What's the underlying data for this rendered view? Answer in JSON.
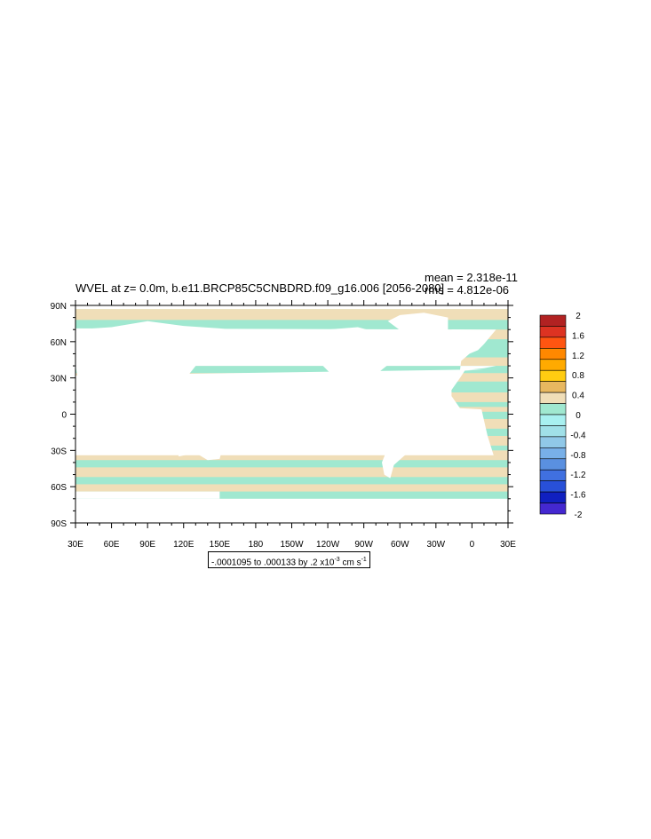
{
  "title": "WVEL at z=   0.0m, b.e11.BRCP85C5CNBDRD.f09_g16.006 [2056-2080]",
  "stats": {
    "mean": "mean = 2.318e-11",
    "rms": "rms = 4.812e-06"
  },
  "axes": {
    "lat_labels": [
      "90N",
      "60N",
      "30N",
      "0",
      "30S",
      "60S",
      "90S"
    ],
    "lon_labels": [
      "30E",
      "60E",
      "90E",
      "120E",
      "150E",
      "180",
      "150W",
      "120W",
      "90W",
      "60W",
      "30W",
      "0",
      "30E"
    ]
  },
  "colorbar": {
    "labels": [
      "2",
      "1.6",
      "1.2",
      "0.8",
      "0.4",
      "0",
      "-0.4",
      "-0.8",
      "-1.2",
      "-1.6",
      "-2"
    ],
    "colors": [
      "#b22222",
      "#dd3322",
      "#ff5511",
      "#ff8800",
      "#ffaa00",
      "#ffcc11",
      "#e8b860",
      "#f0deb8",
      "#a0e8d0",
      "#a8f0f0",
      "#a0e0e8",
      "#90c8e8",
      "#78b0e8",
      "#5a90e0",
      "#4070e0",
      "#2850d8",
      "#1020c0",
      "#4428d0"
    ]
  },
  "contour_info": {
    "prefix": "-.0001095 to .000133 by .2 x10",
    "exponent": "-3",
    "units_prefix": " cm s",
    "units_exponent": "-1"
  },
  "map": {
    "land_color": "#ffffff",
    "positive_color": "#f0deb8",
    "negative_color": "#a0e8d0"
  }
}
